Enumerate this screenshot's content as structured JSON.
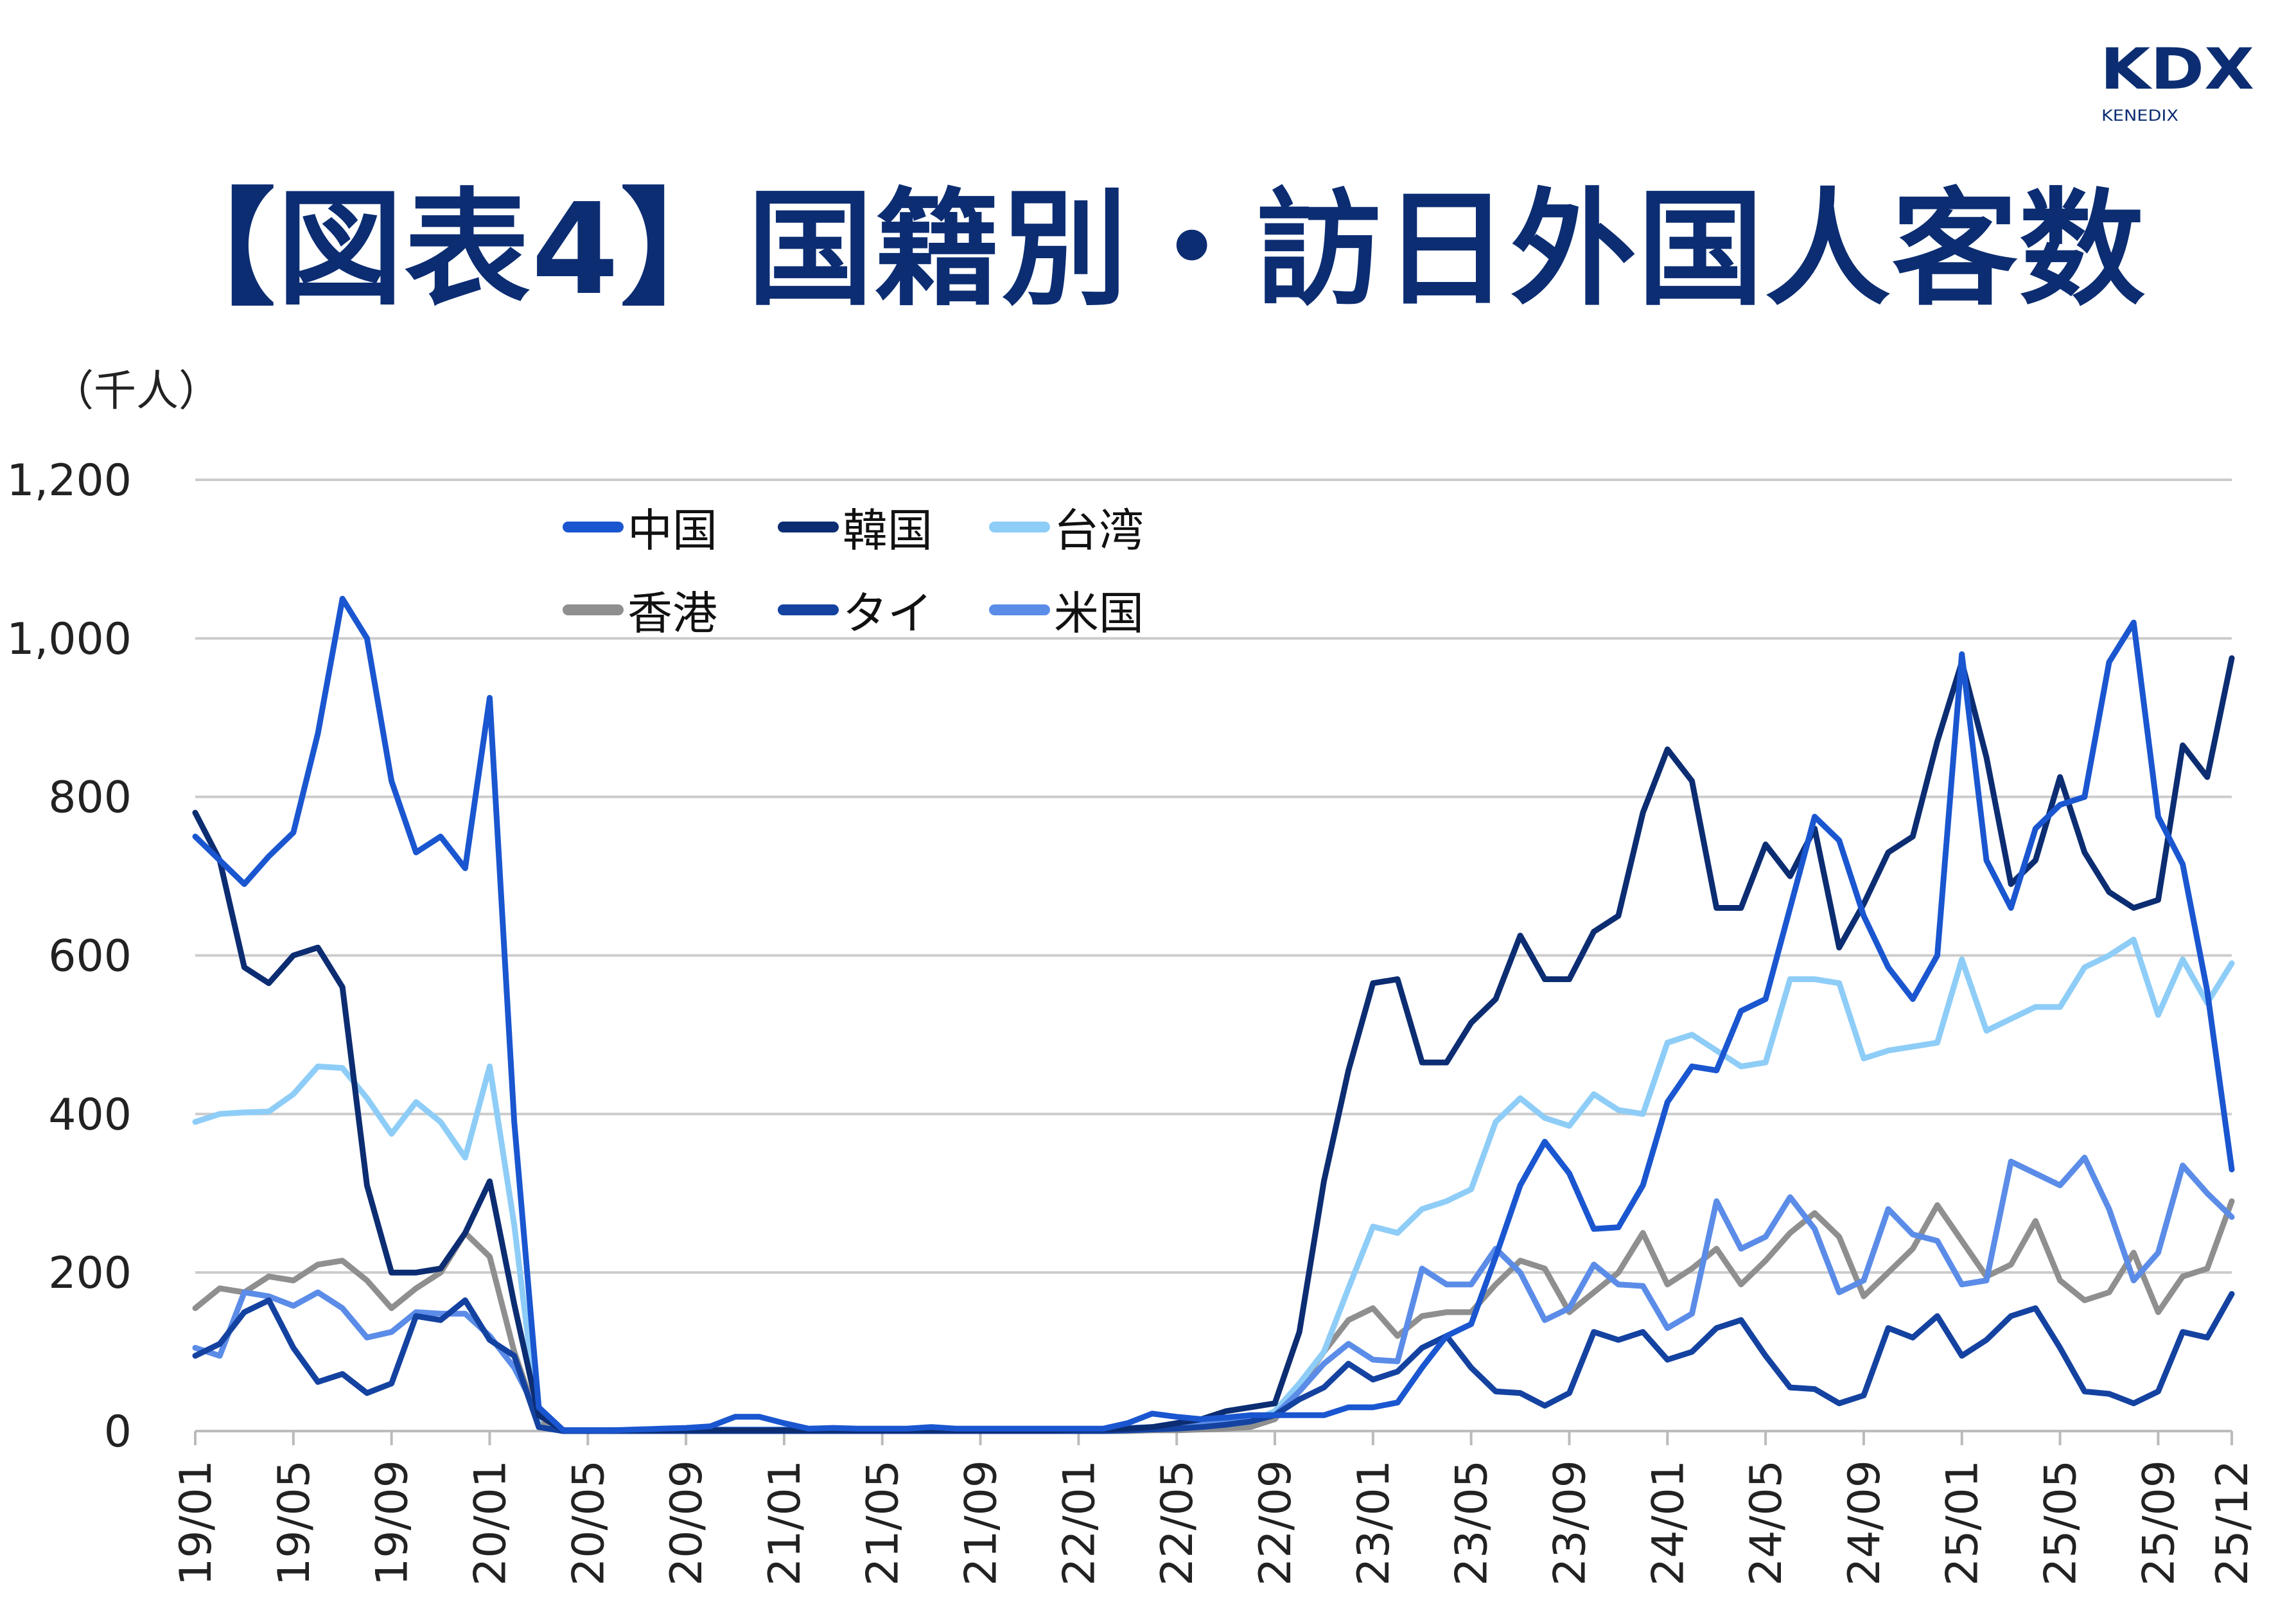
{
  "title": "【図表4】国籍別・訪日外国人客数",
  "logo": {
    "main": "KDX",
    "sub": "KENEDIX",
    "color": "#0c2d72"
  },
  "chart_data": {
    "type": "line",
    "title": "【図表4】国籍別・訪日外国人客数",
    "ylabel": "（千人）",
    "xlabel": "",
    "ylim": [
      0,
      1200
    ],
    "yticks": [
      0,
      200,
      400,
      600,
      800,
      1000,
      1200
    ],
    "ytick_labels": [
      "0",
      "200",
      "400",
      "600",
      "800",
      "1,000",
      "1,200"
    ],
    "grid": "horizontal",
    "legend_placement": "top-left",
    "categories": [
      "19/01",
      "19/02",
      "19/03",
      "19/04",
      "19/05",
      "19/06",
      "19/07",
      "19/08",
      "19/09",
      "19/10",
      "19/11",
      "19/12",
      "20/01",
      "20/02",
      "20/03",
      "20/04",
      "20/05",
      "20/06",
      "20/07",
      "20/08",
      "20/09",
      "20/10",
      "20/11",
      "20/12",
      "21/01",
      "21/02",
      "21/03",
      "21/04",
      "21/05",
      "21/06",
      "21/07",
      "21/08",
      "21/09",
      "21/10",
      "21/11",
      "21/12",
      "22/01",
      "22/02",
      "22/03",
      "22/04",
      "22/05",
      "22/06",
      "22/07",
      "22/08",
      "22/09",
      "22/10",
      "22/11",
      "22/12",
      "23/01",
      "23/02",
      "23/03",
      "23/04",
      "23/05",
      "23/06",
      "23/07",
      "23/08",
      "23/09",
      "23/10",
      "23/11",
      "23/12",
      "24/01",
      "24/02",
      "24/03",
      "24/04",
      "24/05",
      "24/06",
      "24/07",
      "24/08",
      "24/09",
      "24/10",
      "24/11",
      "24/12",
      "25/01",
      "25/02",
      "25/03",
      "25/04",
      "25/05",
      "25/06",
      "25/07",
      "25/08",
      "25/09",
      "25/10",
      "25/11",
      "25/12"
    ],
    "xtick_labels": [
      "19/01",
      "19/05",
      "19/09",
      "20/01",
      "20/05",
      "20/09",
      "21/01",
      "21/05",
      "21/09",
      "22/01",
      "22/05",
      "22/09",
      "23/01",
      "23/05",
      "23/09",
      "24/01",
      "24/05",
      "24/09",
      "25/01",
      "25/05",
      "25/09",
      "25/12"
    ],
    "series": [
      {
        "name": "香港",
        "color": "#8f8f8f",
        "values": [
          155,
          180,
          175,
          195,
          190,
          210,
          215,
          190,
          155,
          180,
          200,
          250,
          220,
          100,
          10,
          0,
          0,
          0,
          0,
          0,
          0,
          0,
          0,
          0,
          0,
          0,
          0,
          0,
          0,
          0,
          0,
          0,
          0,
          0,
          0,
          0,
          0,
          0,
          0,
          1,
          1,
          2,
          3,
          5,
          15,
          55,
          100,
          140,
          155,
          120,
          145,
          150,
          150,
          185,
          215,
          205,
          150,
          175,
          200,
          250,
          185,
          205,
          230,
          185,
          215,
          250,
          275,
          245,
          170,
          200,
          230,
          285,
          240,
          195,
          210,
          265,
          190,
          165,
          175,
          225,
          150,
          195,
          205,
          290
        ]
      },
      {
        "name": "台湾",
        "color": "#8ecdf7",
        "values": [
          390,
          400,
          402,
          403,
          425,
          460,
          458,
          420,
          375,
          415,
          390,
          345,
          460,
          260,
          5,
          1,
          1,
          1,
          1,
          1,
          1,
          1,
          1,
          1,
          1,
          1,
          1,
          1,
          1,
          1,
          1,
          1,
          1,
          1,
          1,
          1,
          1,
          1,
          1,
          2,
          3,
          5,
          8,
          12,
          25,
          60,
          100,
          180,
          258,
          250,
          280,
          290,
          305,
          390,
          420,
          395,
          385,
          425,
          405,
          400,
          490,
          500,
          480,
          460,
          465,
          570,
          570,
          565,
          470,
          480,
          485,
          490,
          595,
          505,
          520,
          535,
          535,
          585,
          600,
          620,
          525,
          595,
          540,
          590
        ]
      },
      {
        "name": "米国",
        "color": "#5b8ce8",
        "values": [
          105,
          95,
          175,
          170,
          158,
          175,
          155,
          118,
          125,
          150,
          148,
          148,
          120,
          80,
          20,
          1,
          1,
          1,
          1,
          1,
          2,
          2,
          2,
          2,
          2,
          2,
          2,
          2,
          2,
          2,
          2,
          2,
          2,
          2,
          2,
          2,
          2,
          3,
          4,
          5,
          8,
          10,
          12,
          15,
          20,
          50,
          85,
          110,
          90,
          88,
          205,
          185,
          185,
          230,
          200,
          140,
          155,
          210,
          185,
          183,
          130,
          148,
          290,
          230,
          245,
          295,
          255,
          175,
          190,
          280,
          248,
          240,
          185,
          190,
          340,
          325,
          310,
          345,
          280,
          190,
          225,
          335,
          300,
          270
        ]
      },
      {
        "name": "タイ",
        "color": "#1442a0",
        "values": [
          95,
          110,
          150,
          165,
          105,
          62,
          72,
          48,
          60,
          145,
          140,
          165,
          115,
          95,
          5,
          0,
          0,
          0,
          0,
          0,
          0,
          0,
          0,
          0,
          0,
          0,
          0,
          0,
          0,
          0,
          0,
          0,
          0,
          0,
          0,
          0,
          0,
          0,
          1,
          2,
          3,
          5,
          8,
          12,
          20,
          40,
          55,
          85,
          65,
          75,
          105,
          120,
          80,
          50,
          48,
          32,
          48,
          125,
          115,
          125,
          90,
          100,
          130,
          140,
          95,
          55,
          53,
          35,
          45,
          130,
          118,
          145,
          95,
          115,
          145,
          155,
          105,
          50,
          47,
          35,
          50,
          125,
          118,
          173
        ]
      },
      {
        "name": "韓国",
        "color": "#0c2d72",
        "values": [
          780,
          720,
          585,
          565,
          600,
          610,
          560,
          310,
          200,
          200,
          205,
          250,
          315,
          160,
          20,
          1,
          1,
          1,
          1,
          1,
          1,
          1,
          1,
          1,
          1,
          1,
          1,
          1,
          1,
          1,
          1,
          1,
          1,
          1,
          1,
          1,
          2,
          2,
          3,
          5,
          10,
          15,
          25,
          30,
          35,
          125,
          315,
          455,
          565,
          570,
          465,
          465,
          515,
          545,
          625,
          570,
          570,
          630,
          650,
          780,
          860,
          820,
          660,
          660,
          740,
          700,
          760,
          610,
          665,
          730,
          750,
          870,
          970,
          850,
          690,
          720,
          825,
          730,
          680,
          660,
          670,
          865,
          825,
          975
        ]
      },
      {
        "name": "中国",
        "color": "#1a56d0",
        "values": [
          750,
          720,
          690,
          725,
          755,
          880,
          1050,
          1000,
          820,
          730,
          750,
          710,
          925,
          390,
          30,
          1,
          1,
          1,
          2,
          3,
          4,
          6,
          18,
          18,
          10,
          3,
          4,
          3,
          3,
          3,
          5,
          3,
          3,
          3,
          3,
          3,
          3,
          3,
          10,
          22,
          18,
          15,
          17,
          20,
          20,
          20,
          20,
          30,
          30,
          36,
          80,
          120,
          135,
          220,
          310,
          365,
          325,
          255,
          257,
          310,
          415,
          460,
          455,
          530,
          545,
          660,
          775,
          745,
          650,
          585,
          545,
          600,
          980,
          720,
          660,
          760,
          790,
          800,
          970,
          1020,
          775,
          715,
          555,
          330
        ]
      }
    ],
    "legend": [
      {
        "name": "中国",
        "color": "#1a56d0"
      },
      {
        "name": "韓国",
        "color": "#0c2d72"
      },
      {
        "name": "台湾",
        "color": "#8ecdf7"
      },
      {
        "name": "香港",
        "color": "#8f8f8f"
      },
      {
        "name": "タイ",
        "color": "#1442a0"
      },
      {
        "name": "米国",
        "color": "#5b8ce8"
      }
    ]
  }
}
